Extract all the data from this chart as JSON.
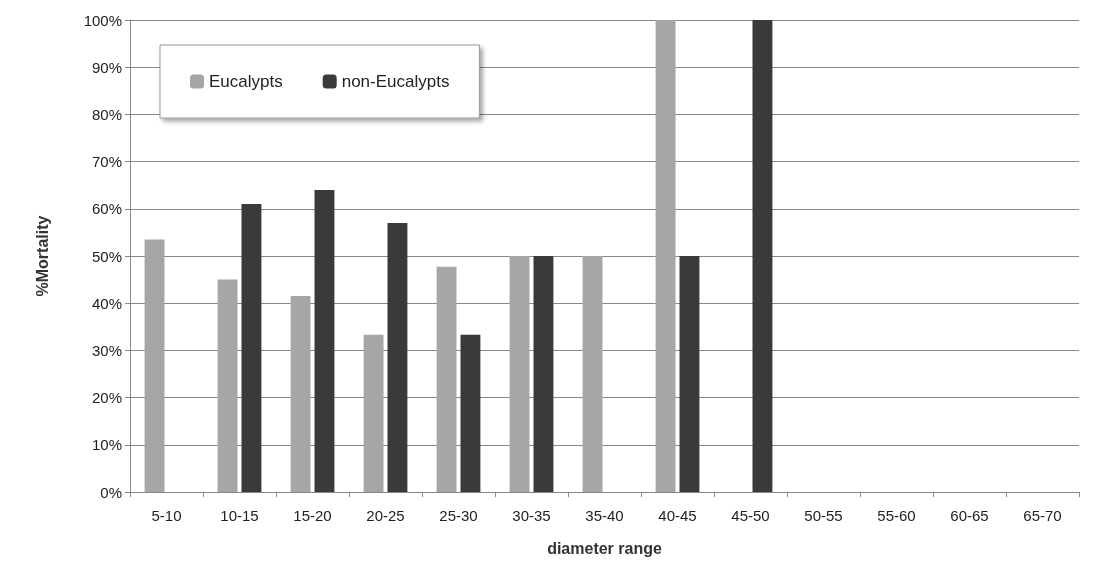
{
  "chart_data": {
    "type": "bar",
    "xlabel": "diameter range",
    "ylabel": "%Mortality",
    "categories": [
      "5-10",
      "10-15",
      "15-20",
      "20-25",
      "25-30",
      "30-35",
      "35-40",
      "40-45",
      "45-50",
      "50-55",
      "55-60",
      "60-65",
      "65-70"
    ],
    "series": [
      {
        "name": "Eucalypts",
        "color": "#a6a6a6",
        "values": [
          53.5,
          45,
          41.5,
          33.3,
          47.7,
          50,
          50,
          100,
          null,
          null,
          null,
          null,
          null
        ]
      },
      {
        "name": "non-Eucalypts",
        "color": "#3a3a3a",
        "values": [
          null,
          61,
          64,
          57,
          33.3,
          50,
          null,
          50,
          100,
          null,
          null,
          null,
          null
        ]
      }
    ],
    "ylim": [
      0,
      100
    ],
    "yticks": [
      {
        "value": 0,
        "label": "0%"
      },
      {
        "value": 10,
        "label": "10%"
      },
      {
        "value": 20,
        "label": "20%"
      },
      {
        "value": 30,
        "label": "30%"
      },
      {
        "value": 40,
        "label": "40%"
      },
      {
        "value": 50,
        "label": "50%"
      },
      {
        "value": 60,
        "label": "60%"
      },
      {
        "value": 70,
        "label": "70%"
      },
      {
        "value": 80,
        "label": "80%"
      },
      {
        "value": 90,
        "label": "90%"
      },
      {
        "value": 100,
        "label": "100%"
      }
    ],
    "grid": "y",
    "legend": "top left"
  }
}
